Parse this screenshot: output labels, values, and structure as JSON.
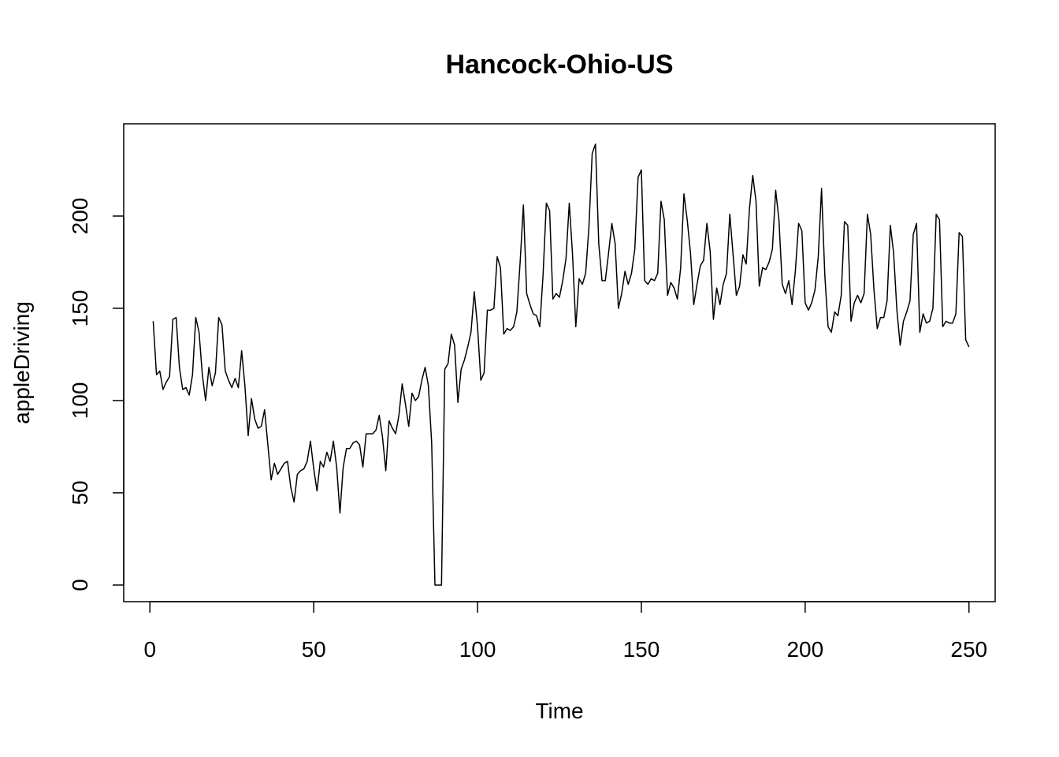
{
  "chart_data": {
    "type": "line",
    "title": "Hancock-Ohio-US",
    "xlabel": "Time",
    "ylabel": "appleDriving",
    "xlim": [
      -8,
      258
    ],
    "ylim": [
      -9,
      250
    ],
    "xticks": [
      0,
      50,
      100,
      150,
      200,
      250
    ],
    "yticks": [
      0,
      50,
      100,
      150,
      200
    ],
    "grid": false,
    "legend": "none",
    "series": [
      {
        "x_start": 1,
        "x_step": 1,
        "values": [
          143,
          114,
          116,
          106,
          110,
          113,
          144,
          145,
          118,
          106,
          107,
          103,
          114,
          145,
          137,
          114,
          100,
          118,
          108,
          115,
          145,
          141,
          116,
          111,
          107,
          112,
          107,
          127,
          108,
          81,
          101,
          90,
          85,
          86,
          95,
          76,
          57,
          66,
          60,
          63,
          66,
          67,
          53,
          45,
          60,
          62,
          63,
          67,
          78,
          63,
          51,
          67,
          64,
          72,
          67,
          78,
          64,
          39,
          64,
          74,
          74,
          77,
          78,
          76,
          64,
          82,
          82,
          82,
          84,
          92,
          80,
          62,
          89,
          85,
          82,
          92,
          109,
          98,
          86,
          104,
          100,
          102,
          111,
          118,
          108,
          77,
          0,
          0,
          0,
          117,
          120,
          136,
          130,
          99,
          117,
          122,
          129,
          137,
          159,
          140,
          111,
          115,
          149,
          149,
          150,
          178,
          172,
          136,
          139,
          138,
          140,
          148,
          175,
          206,
          158,
          152,
          147,
          146,
          140,
          168,
          207,
          203,
          155,
          158,
          156,
          165,
          177,
          207,
          179,
          140,
          166,
          163,
          169,
          194,
          234,
          239,
          185,
          165,
          165,
          180,
          196,
          185,
          150,
          158,
          170,
          163,
          169,
          182,
          221,
          225,
          165,
          163,
          166,
          165,
          169,
          208,
          198,
          157,
          164,
          161,
          155,
          172,
          212,
          198,
          180,
          152,
          163,
          173,
          176,
          196,
          181,
          144,
          161,
          152,
          163,
          169,
          201,
          179,
          157,
          162,
          179,
          174,
          204,
          222,
          208,
          162,
          172,
          171,
          175,
          182,
          214,
          198,
          163,
          158,
          165,
          152,
          170,
          196,
          192,
          153,
          149,
          153,
          160,
          178,
          215,
          168,
          140,
          137,
          148,
          146,
          157,
          197,
          195,
          143,
          153,
          157,
          153,
          158,
          201,
          190,
          160,
          139,
          145,
          145,
          154,
          195,
          180,
          149,
          130,
          143,
          148,
          154,
          190,
          196,
          137,
          147,
          142,
          143,
          150,
          201,
          198,
          140,
          143,
          142,
          142,
          147,
          191,
          189,
          133,
          129
        ]
      }
    ]
  }
}
